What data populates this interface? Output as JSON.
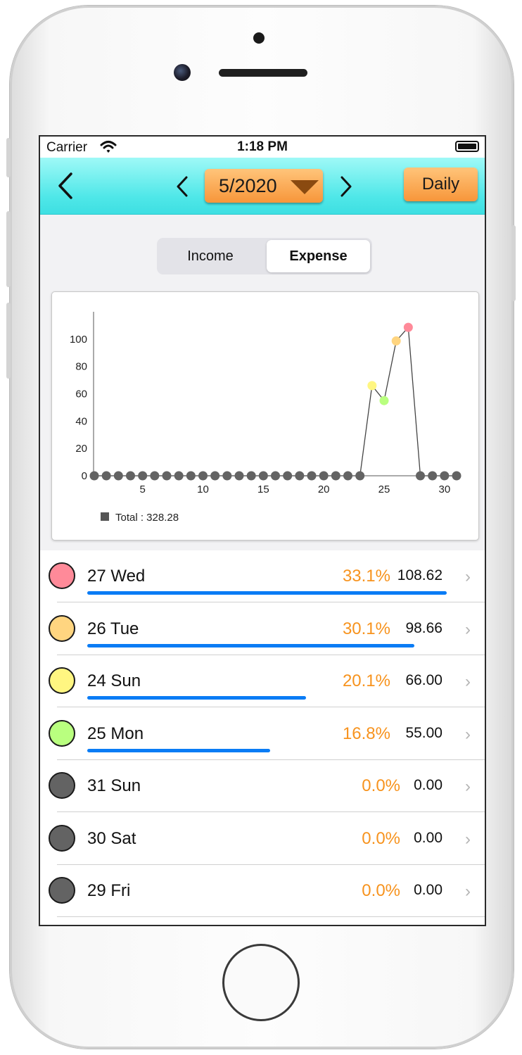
{
  "status": {
    "carrier": "Carrier",
    "time": "1:18 PM"
  },
  "nav": {
    "month": "5/2020",
    "daily_label": "Daily"
  },
  "segment": {
    "items": [
      "Income",
      "Expense"
    ],
    "selected": "Expense"
  },
  "chart_data": {
    "type": "line",
    "x": [
      1,
      2,
      3,
      4,
      5,
      6,
      7,
      8,
      9,
      10,
      11,
      12,
      13,
      14,
      15,
      16,
      17,
      18,
      19,
      20,
      21,
      22,
      23,
      24,
      25,
      26,
      27,
      28,
      29,
      30,
      31
    ],
    "y": [
      0,
      0,
      0,
      0,
      0,
      0,
      0,
      0,
      0,
      0,
      0,
      0,
      0,
      0,
      0,
      0,
      0,
      0,
      0,
      0,
      0,
      0,
      0,
      66.0,
      55.0,
      98.66,
      108.62,
      0,
      0,
      0,
      0
    ],
    "point_colors": {
      "24": "#fff681",
      "25": "#b9ff7f",
      "26": "#ffd580",
      "27": "#ff8a99"
    },
    "default_point_color": "#636363",
    "line_color": "#444444",
    "xticks": [
      5,
      10,
      15,
      20,
      25,
      30
    ],
    "yticks": [
      0,
      20,
      40,
      60,
      80,
      100
    ],
    "xlim": [
      1,
      31
    ],
    "ylim": [
      0,
      120
    ],
    "legend": "Total : 328.28",
    "legend_position": "bottom-left",
    "grid": false
  },
  "rows": [
    {
      "day": "27 Wed",
      "pct": "33.1%",
      "amount": "108.62",
      "color": "#ff8a99",
      "fraction": 0.331
    },
    {
      "day": "26 Tue",
      "pct": "30.1%",
      "amount": "98.66",
      "color": "#ffd580",
      "fraction": 0.301
    },
    {
      "day": "24 Sun",
      "pct": "20.1%",
      "amount": "66.00",
      "color": "#fff681",
      "fraction": 0.201
    },
    {
      "day": "25 Mon",
      "pct": "16.8%",
      "amount": "55.00",
      "color": "#b9ff7f",
      "fraction": 0.168
    },
    {
      "day": "31 Sun",
      "pct": "0.0%",
      "amount": "0.00",
      "color": "#636363",
      "fraction": 0
    },
    {
      "day": "30 Sat",
      "pct": "0.0%",
      "amount": "0.00",
      "color": "#636363",
      "fraction": 0
    },
    {
      "day": "29 Fri",
      "pct": "0.0%",
      "amount": "0.00",
      "color": "#636363",
      "fraction": 0
    }
  ]
}
